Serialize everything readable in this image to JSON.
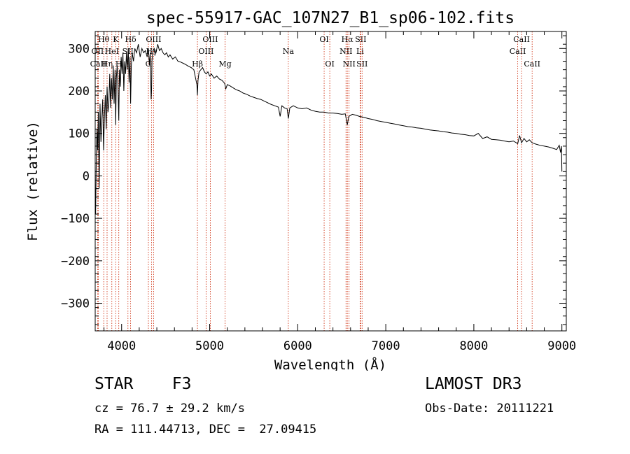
{
  "chart_data": {
    "type": "line",
    "title": "spec-55917-GAC_107N27_B1_sp06-102.fits",
    "xlabel": "Wavelength (Å)",
    "ylabel": "Flux (relative)",
    "xlim": [
      3700,
      9050
    ],
    "ylim": [
      -365,
      340
    ],
    "xticks": [
      4000,
      5000,
      6000,
      7000,
      8000,
      9000
    ],
    "xtick_labels": [
      "4000",
      "5000",
      "6000",
      "7000",
      "8000",
      "9000"
    ],
    "yticks": [
      -300,
      -200,
      -100,
      0,
      100,
      200,
      300
    ],
    "ytick_labels": [
      "−300",
      "−200",
      "−100",
      "0",
      "100",
      "200",
      "300"
    ],
    "grid": false,
    "series": [
      {
        "name": "spectrum",
        "x": [
          3705,
          3712,
          3720,
          3728,
          3736,
          3745,
          3755,
          3765,
          3775,
          3785,
          3795,
          3805,
          3815,
          3825,
          3835,
          3845,
          3855,
          3865,
          3875,
          3885,
          3895,
          3905,
          3915,
          3925,
          3933,
          3940,
          3950,
          3960,
          3968,
          3975,
          3985,
          3995,
          4005,
          4015,
          4025,
          4035,
          4045,
          4055,
          4065,
          4075,
          4085,
          4095,
          4102,
          4110,
          4120,
          4135,
          4150,
          4170,
          4190,
          4210,
          4230,
          4250,
          4270,
          4290,
          4305,
          4315,
          4325,
          4335,
          4340,
          4345,
          4355,
          4370,
          4390,
          4410,
          4430,
          4450,
          4470,
          4490,
          4510,
          4530,
          4550,
          4580,
          4610,
          4640,
          4670,
          4700,
          4730,
          4760,
          4790,
          4820,
          4840,
          4855,
          4861,
          4868,
          4880,
          4900,
          4920,
          4940,
          4960,
          4980,
          5000,
          5020,
          5050,
          5080,
          5110,
          5140,
          5170,
          5183,
          5200,
          5230,
          5260,
          5300,
          5340,
          5380,
          5420,
          5460,
          5500,
          5540,
          5580,
          5620,
          5660,
          5700,
          5740,
          5780,
          5800,
          5820,
          5850,
          5880,
          5893,
          5910,
          5950,
          6000,
          6050,
          6100,
          6150,
          6200,
          6250,
          6300,
          6350,
          6400,
          6450,
          6500,
          6540,
          6563,
          6580,
          6620,
          6660,
          6700,
          6750,
          6800,
          6850,
          6900,
          6950,
          7000,
          7050,
          7100,
          7150,
          7200,
          7250,
          7300,
          7350,
          7400,
          7450,
          7500,
          7550,
          7600,
          7650,
          7700,
          7750,
          7800,
          7850,
          7900,
          7950,
          8000,
          8050,
          8100,
          8150,
          8200,
          8250,
          8300,
          8350,
          8400,
          8450,
          8498,
          8520,
          8542,
          8570,
          8600,
          8630,
          8662,
          8700,
          8750,
          8800,
          8850,
          8900,
          8940,
          8970,
          8985,
          8995,
          9000
        ],
        "y": [
          -90,
          30,
          110,
          60,
          150,
          -30,
          170,
          80,
          130,
          180,
          60,
          140,
          190,
          110,
          210,
          150,
          170,
          240,
          160,
          230,
          180,
          260,
          170,
          250,
          120,
          230,
          260,
          200,
          130,
          250,
          210,
          280,
          240,
          290,
          200,
          270,
          240,
          290,
          250,
          300,
          220,
          280,
          170,
          260,
          290,
          270,
          300,
          290,
          310,
          280,
          300,
          290,
          295,
          280,
          300,
          260,
          290,
          180,
          200,
          270,
          295,
          300,
          290,
          310,
          295,
          300,
          290,
          285,
          290,
          280,
          285,
          275,
          280,
          270,
          268,
          265,
          262,
          258,
          255,
          250,
          230,
          215,
          190,
          225,
          245,
          250,
          255,
          245,
          240,
          245,
          235,
          240,
          230,
          235,
          228,
          225,
          218,
          205,
          215,
          212,
          208,
          203,
          200,
          195,
          192,
          188,
          185,
          182,
          180,
          176,
          172,
          168,
          165,
          162,
          140,
          165,
          160,
          158,
          135,
          160,
          165,
          160,
          158,
          160,
          155,
          152,
          150,
          150,
          148,
          148,
          147,
          145,
          146,
          120,
          140,
          145,
          143,
          140,
          138,
          135,
          133,
          130,
          128,
          126,
          124,
          122,
          120,
          118,
          116,
          115,
          113,
          112,
          110,
          108,
          107,
          106,
          104,
          103,
          101,
          100,
          98,
          97,
          95,
          94,
          100,
          88,
          92,
          86,
          85,
          84,
          82,
          80,
          82,
          76,
          95,
          78,
          88,
          80,
          85,
          78,
          75,
          72,
          70,
          68,
          65,
          62,
          72,
          55,
          70,
          10
        ]
      }
    ],
    "line_markers": [
      {
        "label": "OII",
        "x": 3727,
        "row": 2
      },
      {
        "label": "Hθ",
        "x": 3797,
        "row": 1
      },
      {
        "label": "CaII",
        "x": 3735,
        "row": 3
      },
      {
        "label": "Hη",
        "x": 3835,
        "row": 3
      },
      {
        "label": "HeI",
        "x": 3889,
        "row": 2
      },
      {
        "label": "K",
        "x": 3933,
        "row": 1
      },
      {
        "label": "H",
        "x": 3968,
        "row": 3
      },
      {
        "label": "SII",
        "x": 4072,
        "row": 2
      },
      {
        "label": "Hδ",
        "x": 4102,
        "row": 1
      },
      {
        "label": "G",
        "x": 4304,
        "row": 3
      },
      {
        "label": "Hγ",
        "x": 4341,
        "row": 2
      },
      {
        "label": "OIII",
        "x": 4363,
        "row": 1
      },
      {
        "label": "Hβ",
        "x": 4861,
        "row": 3
      },
      {
        "label": "OIII",
        "x": 4959,
        "row": 2
      },
      {
        "label": "OIII",
        "x": 5007,
        "row": 1
      },
      {
        "label": "Mg",
        "x": 5175,
        "row": 3
      },
      {
        "label": "Na",
        "x": 5893,
        "row": 2
      },
      {
        "label": "OI",
        "x": 6300,
        "row": 1
      },
      {
        "label": "OI",
        "x": 6364,
        "row": 3
      },
      {
        "label": "NII",
        "x": 6548,
        "row": 2
      },
      {
        "label": "Hα",
        "x": 6563,
        "row": 1
      },
      {
        "label": "NII",
        "x": 6583,
        "row": 3
      },
      {
        "label": "Li",
        "x": 6708,
        "row": 2
      },
      {
        "label": "SII",
        "x": 6716,
        "row": 1
      },
      {
        "label": "SII",
        "x": 6731,
        "row": 3
      },
      {
        "label": "CaII",
        "x": 8498,
        "row": 2
      },
      {
        "label": "CaII",
        "x": 8542,
        "row": 1
      },
      {
        "label": "CaII",
        "x": 8662,
        "row": 3
      }
    ],
    "colors": {
      "spectrum": "#000000",
      "markers": "#cc2200",
      "axes": "#000000"
    }
  },
  "info": {
    "object_line": "STAR    F3",
    "survey": "LAMOST DR3",
    "cz_line": "cz = 76.7 ± 29.2 km/s",
    "obs_date_line": "Obs-Date: 20111221",
    "radec_line": "RA = 111.44713, DEC =  27.09415"
  }
}
